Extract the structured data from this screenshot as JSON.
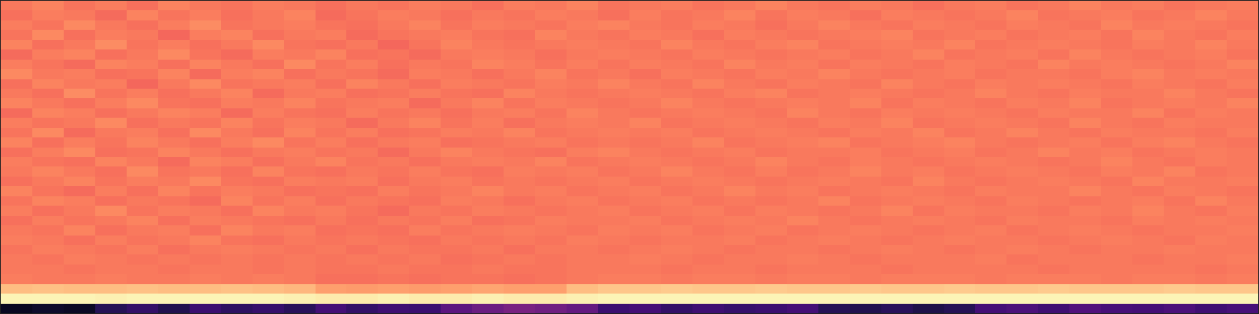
{
  "chart_data": {
    "type": "heatmap",
    "tick_labels": false,
    "color_range": [
      0,
      1
    ],
    "cells": [
      [
        0.72,
        0.74,
        0.71,
        0.73,
        0.7,
        0.74,
        0.72,
        0.71,
        0.73,
        0.72,
        0.7,
        0.72,
        0.71,
        0.73,
        0.72,
        0.7,
        0.73,
        0.72,
        0.74,
        0.71,
        0.72,
        0.73,
        0.71,
        0.72,
        0.74,
        0.72,
        0.71,
        0.73,
        0.72,
        0.7,
        0.72,
        0.73,
        0.71,
        0.72,
        0.74,
        0.72,
        0.73,
        0.71,
        0.72,
        0.73
      ],
      [
        0.7,
        0.73,
        0.72,
        0.69,
        0.74,
        0.71,
        0.73,
        0.7,
        0.72,
        0.74,
        0.69,
        0.71,
        0.73,
        0.72,
        0.7,
        0.72,
        0.71,
        0.73,
        0.72,
        0.7,
        0.73,
        0.71,
        0.72,
        0.74,
        0.71,
        0.73,
        0.72,
        0.7,
        0.73,
        0.72,
        0.71,
        0.72,
        0.74,
        0.71,
        0.72,
        0.73,
        0.71,
        0.72,
        0.74,
        0.72
      ],
      [
        0.73,
        0.71,
        0.75,
        0.72,
        0.7,
        0.73,
        0.76,
        0.71,
        0.72,
        0.73,
        0.71,
        0.7,
        0.72,
        0.74,
        0.71,
        0.73,
        0.72,
        0.71,
        0.73,
        0.74,
        0.72,
        0.71,
        0.73,
        0.72,
        0.7,
        0.72,
        0.74,
        0.72,
        0.71,
        0.73,
        0.72,
        0.71,
        0.73,
        0.72,
        0.71,
        0.74,
        0.72,
        0.73,
        0.72,
        0.71
      ],
      [
        0.71,
        0.75,
        0.7,
        0.73,
        0.72,
        0.68,
        0.73,
        0.74,
        0.7,
        0.72,
        0.73,
        0.69,
        0.71,
        0.72,
        0.73,
        0.71,
        0.7,
        0.74,
        0.72,
        0.71,
        0.73,
        0.72,
        0.7,
        0.73,
        0.72,
        0.71,
        0.72,
        0.73,
        0.74,
        0.71,
        0.72,
        0.73,
        0.71,
        0.72,
        0.73,
        0.71,
        0.74,
        0.72,
        0.71,
        0.73
      ],
      [
        0.74,
        0.7,
        0.72,
        0.76,
        0.71,
        0.73,
        0.7,
        0.72,
        0.75,
        0.71,
        0.7,
        0.72,
        0.68,
        0.71,
        0.74,
        0.72,
        0.71,
        0.72,
        0.73,
        0.72,
        0.71,
        0.74,
        0.72,
        0.71,
        0.73,
        0.74,
        0.71,
        0.72,
        0.73,
        0.72,
        0.74,
        0.71,
        0.72,
        0.73,
        0.72,
        0.71,
        0.73,
        0.72,
        0.74,
        0.72
      ],
      [
        0.69,
        0.73,
        0.74,
        0.7,
        0.72,
        0.75,
        0.71,
        0.69,
        0.73,
        0.72,
        0.74,
        0.7,
        0.71,
        0.69,
        0.72,
        0.73,
        0.72,
        0.7,
        0.72,
        0.73,
        0.72,
        0.71,
        0.73,
        0.72,
        0.71,
        0.72,
        0.73,
        0.71,
        0.72,
        0.74,
        0.71,
        0.72,
        0.73,
        0.71,
        0.74,
        0.72,
        0.71,
        0.72,
        0.73,
        0.71
      ],
      [
        0.73,
        0.71,
        0.69,
        0.74,
        0.73,
        0.7,
        0.74,
        0.72,
        0.7,
        0.75,
        0.71,
        0.73,
        0.7,
        0.72,
        0.71,
        0.74,
        0.73,
        0.71,
        0.73,
        0.71,
        0.73,
        0.72,
        0.71,
        0.74,
        0.72,
        0.73,
        0.71,
        0.73,
        0.72,
        0.71,
        0.73,
        0.72,
        0.71,
        0.74,
        0.72,
        0.73,
        0.72,
        0.71,
        0.72,
        0.74
      ],
      [
        0.75,
        0.72,
        0.73,
        0.7,
        0.71,
        0.74,
        0.69,
        0.73,
        0.74,
        0.7,
        0.72,
        0.71,
        0.69,
        0.73,
        0.72,
        0.7,
        0.72,
        0.74,
        0.71,
        0.72,
        0.7,
        0.73,
        0.72,
        0.71,
        0.73,
        0.72,
        0.74,
        0.72,
        0.71,
        0.72,
        0.73,
        0.71,
        0.72,
        0.72,
        0.71,
        0.73,
        0.74,
        0.72,
        0.73,
        0.72
      ],
      [
        0.7,
        0.74,
        0.72,
        0.73,
        0.68,
        0.72,
        0.75,
        0.71,
        0.72,
        0.73,
        0.7,
        0.74,
        0.72,
        0.7,
        0.73,
        0.72,
        0.71,
        0.73,
        0.72,
        0.74,
        0.72,
        0.71,
        0.74,
        0.72,
        0.71,
        0.73,
        0.72,
        0.71,
        0.74,
        0.72,
        0.71,
        0.73,
        0.72,
        0.73,
        0.72,
        0.71,
        0.73,
        0.72,
        0.71,
        0.73
      ],
      [
        0.72,
        0.7,
        0.76,
        0.71,
        0.73,
        0.7,
        0.72,
        0.74,
        0.69,
        0.72,
        0.73,
        0.7,
        0.71,
        0.73,
        0.71,
        0.7,
        0.74,
        0.72,
        0.71,
        0.72,
        0.73,
        0.72,
        0.71,
        0.73,
        0.74,
        0.71,
        0.72,
        0.73,
        0.72,
        0.71,
        0.72,
        0.74,
        0.72,
        0.71,
        0.73,
        0.72,
        0.72,
        0.74,
        0.72,
        0.71
      ],
      [
        0.74,
        0.72,
        0.7,
        0.73,
        0.75,
        0.71,
        0.7,
        0.73,
        0.72,
        0.74,
        0.71,
        0.72,
        0.73,
        0.69,
        0.72,
        0.74,
        0.71,
        0.73,
        0.72,
        0.71,
        0.72,
        0.74,
        0.72,
        0.71,
        0.72,
        0.73,
        0.72,
        0.74,
        0.71,
        0.73,
        0.72,
        0.71,
        0.73,
        0.72,
        0.74,
        0.71,
        0.72,
        0.73,
        0.72,
        0.74
      ],
      [
        0.69,
        0.74,
        0.73,
        0.7,
        0.72,
        0.74,
        0.73,
        0.69,
        0.73,
        0.71,
        0.7,
        0.73,
        0.71,
        0.72,
        0.7,
        0.72,
        0.73,
        0.71,
        0.74,
        0.72,
        0.71,
        0.72,
        0.73,
        0.72,
        0.71,
        0.74,
        0.72,
        0.71,
        0.73,
        0.72,
        0.73,
        0.72,
        0.71,
        0.73,
        0.72,
        0.72,
        0.74,
        0.71,
        0.73,
        0.72
      ],
      [
        0.73,
        0.71,
        0.72,
        0.75,
        0.7,
        0.72,
        0.71,
        0.74,
        0.71,
        0.73,
        0.72,
        0.69,
        0.72,
        0.74,
        0.71,
        0.73,
        0.7,
        0.72,
        0.73,
        0.72,
        0.74,
        0.71,
        0.72,
        0.73,
        0.72,
        0.71,
        0.73,
        0.72,
        0.74,
        0.71,
        0.72,
        0.73,
        0.72,
        0.71,
        0.74,
        0.72,
        0.71,
        0.73,
        0.72,
        0.72
      ],
      [
        0.71,
        0.75,
        0.69,
        0.72,
        0.73,
        0.7,
        0.75,
        0.72,
        0.7,
        0.74,
        0.71,
        0.73,
        0.7,
        0.71,
        0.73,
        0.72,
        0.74,
        0.71,
        0.72,
        0.73,
        0.72,
        0.73,
        0.71,
        0.72,
        0.73,
        0.72,
        0.71,
        0.73,
        0.72,
        0.74,
        0.71,
        0.72,
        0.74,
        0.72,
        0.71,
        0.73,
        0.72,
        0.72,
        0.71,
        0.73
      ],
      [
        0.74,
        0.7,
        0.73,
        0.71,
        0.74,
        0.72,
        0.7,
        0.73,
        0.75,
        0.71,
        0.73,
        0.7,
        0.72,
        0.73,
        0.7,
        0.71,
        0.72,
        0.73,
        0.71,
        0.72,
        0.71,
        0.72,
        0.74,
        0.71,
        0.72,
        0.73,
        0.74,
        0.71,
        0.72,
        0.73,
        0.74,
        0.72,
        0.71,
        0.72,
        0.73,
        0.71,
        0.73,
        0.74,
        0.72,
        0.71
      ],
      [
        0.7,
        0.73,
        0.75,
        0.7,
        0.71,
        0.74,
        0.72,
        0.7,
        0.72,
        0.73,
        0.71,
        0.72,
        0.69,
        0.72,
        0.74,
        0.72,
        0.71,
        0.7,
        0.73,
        0.74,
        0.72,
        0.71,
        0.72,
        0.73,
        0.71,
        0.72,
        0.72,
        0.73,
        0.71,
        0.72,
        0.73,
        0.71,
        0.72,
        0.74,
        0.72,
        0.73,
        0.71,
        0.72,
        0.73,
        0.72
      ],
      [
        0.73,
        0.71,
        0.7,
        0.74,
        0.72,
        0.69,
        0.74,
        0.73,
        0.7,
        0.72,
        0.74,
        0.71,
        0.72,
        0.7,
        0.72,
        0.73,
        0.72,
        0.74,
        0.71,
        0.72,
        0.73,
        0.72,
        0.71,
        0.72,
        0.74,
        0.72,
        0.71,
        0.73,
        0.72,
        0.71,
        0.72,
        0.73,
        0.72,
        0.71,
        0.72,
        0.74,
        0.72,
        0.71,
        0.73,
        0.72
      ],
      [
        0.72,
        0.74,
        0.72,
        0.7,
        0.75,
        0.71,
        0.72,
        0.7,
        0.74,
        0.71,
        0.7,
        0.72,
        0.71,
        0.73,
        0.71,
        0.7,
        0.73,
        0.72,
        0.73,
        0.71,
        0.72,
        0.74,
        0.72,
        0.71,
        0.73,
        0.71,
        0.72,
        0.74,
        0.72,
        0.73,
        0.71,
        0.72,
        0.73,
        0.72,
        0.71,
        0.73,
        0.72,
        0.74,
        0.71,
        0.72
      ],
      [
        0.7,
        0.72,
        0.74,
        0.71,
        0.73,
        0.72,
        0.75,
        0.71,
        0.7,
        0.73,
        0.72,
        0.73,
        0.7,
        0.72,
        0.73,
        0.71,
        0.72,
        0.71,
        0.72,
        0.73,
        0.71,
        0.72,
        0.73,
        0.72,
        0.71,
        0.72,
        0.73,
        0.72,
        0.71,
        0.74,
        0.72,
        0.71,
        0.72,
        0.73,
        0.72,
        0.71,
        0.74,
        0.72,
        0.72,
        0.73
      ],
      [
        0.74,
        0.71,
        0.69,
        0.73,
        0.7,
        0.74,
        0.71,
        0.73,
        0.72,
        0.7,
        0.71,
        0.7,
        0.73,
        0.71,
        0.72,
        0.74,
        0.72,
        0.73,
        0.71,
        0.72,
        0.73,
        0.71,
        0.72,
        0.74,
        0.72,
        0.73,
        0.71,
        0.72,
        0.73,
        0.72,
        0.71,
        0.73,
        0.72,
        0.72,
        0.74,
        0.72,
        0.71,
        0.73,
        0.72,
        0.71
      ],
      [
        0.71,
        0.74,
        0.73,
        0.7,
        0.72,
        0.71,
        0.69,
        0.74,
        0.71,
        0.73,
        0.7,
        0.72,
        0.71,
        0.7,
        0.73,
        0.72,
        0.7,
        0.72,
        0.73,
        0.71,
        0.72,
        0.73,
        0.71,
        0.72,
        0.71,
        0.72,
        0.74,
        0.71,
        0.72,
        0.73,
        0.72,
        0.71,
        0.73,
        0.72,
        0.71,
        0.72,
        0.73,
        0.71,
        0.74,
        0.72
      ],
      [
        0.73,
        0.7,
        0.72,
        0.75,
        0.71,
        0.73,
        0.72,
        0.7,
        0.74,
        0.72,
        0.73,
        0.71,
        0.69,
        0.72,
        0.71,
        0.73,
        0.72,
        0.71,
        0.72,
        0.73,
        0.71,
        0.72,
        0.73,
        0.71,
        0.73,
        0.72,
        0.71,
        0.72,
        0.74,
        0.71,
        0.73,
        0.72,
        0.72,
        0.71,
        0.73,
        0.72,
        0.74,
        0.72,
        0.71,
        0.73
      ],
      [
        0.7,
        0.73,
        0.71,
        0.72,
        0.74,
        0.7,
        0.73,
        0.72,
        0.71,
        0.7,
        0.72,
        0.7,
        0.72,
        0.71,
        0.73,
        0.7,
        0.71,
        0.73,
        0.72,
        0.72,
        0.73,
        0.71,
        0.72,
        0.73,
        0.72,
        0.74,
        0.72,
        0.71,
        0.72,
        0.73,
        0.72,
        0.71,
        0.73,
        0.72,
        0.72,
        0.71,
        0.73,
        0.72,
        0.73,
        0.72
      ],
      [
        0.72,
        0.71,
        0.74,
        0.7,
        0.72,
        0.73,
        0.7,
        0.74,
        0.72,
        0.73,
        0.7,
        0.71,
        0.7,
        0.73,
        0.71,
        0.72,
        0.73,
        0.72,
        0.71,
        0.73,
        0.72,
        0.73,
        0.71,
        0.72,
        0.73,
        0.71,
        0.72,
        0.73,
        0.72,
        0.71,
        0.72,
        0.73,
        0.71,
        0.72,
        0.73,
        0.72,
        0.71,
        0.72,
        0.72,
        0.73
      ],
      [
        0.73,
        0.72,
        0.7,
        0.73,
        0.71,
        0.72,
        0.74,
        0.71,
        0.7,
        0.72,
        0.71,
        0.72,
        0.71,
        0.7,
        0.72,
        0.71,
        0.72,
        0.71,
        0.73,
        0.72,
        0.71,
        0.72,
        0.72,
        0.73,
        0.71,
        0.72,
        0.73,
        0.72,
        0.71,
        0.72,
        0.73,
        0.72,
        0.72,
        0.71,
        0.72,
        0.73,
        0.72,
        0.71,
        0.73,
        0.72
      ],
      [
        0.71,
        0.73,
        0.72,
        0.71,
        0.73,
        0.7,
        0.72,
        0.73,
        0.72,
        0.71,
        0.72,
        0.7,
        0.72,
        0.71,
        0.71,
        0.72,
        0.7,
        0.72,
        0.72,
        0.71,
        0.72,
        0.73,
        0.72,
        0.71,
        0.72,
        0.72,
        0.71,
        0.72,
        0.73,
        0.72,
        0.71,
        0.72,
        0.73,
        0.72,
        0.71,
        0.72,
        0.72,
        0.73,
        0.72,
        0.72
      ],
      [
        0.72,
        0.71,
        0.73,
        0.72,
        0.71,
        0.72,
        0.71,
        0.72,
        0.71,
        0.72,
        0.71,
        0.72,
        0.71,
        0.72,
        0.7,
        0.71,
        0.72,
        0.71,
        0.72,
        0.72,
        0.73,
        0.72,
        0.71,
        0.72,
        0.72,
        0.73,
        0.72,
        0.71,
        0.72,
        0.72,
        0.72,
        0.73,
        0.71,
        0.72,
        0.72,
        0.72,
        0.71,
        0.72,
        0.72,
        0.73
      ],
      [
        0.72,
        0.72,
        0.71,
        0.72,
        0.72,
        0.71,
        0.72,
        0.72,
        0.71,
        0.72,
        0.71,
        0.71,
        0.72,
        0.71,
        0.71,
        0.72,
        0.71,
        0.71,
        0.72,
        0.72,
        0.72,
        0.71,
        0.72,
        0.72,
        0.71,
        0.72,
        0.72,
        0.72,
        0.71,
        0.72,
        0.72,
        0.72,
        0.72,
        0.71,
        0.72,
        0.72,
        0.72,
        0.72,
        0.71,
        0.72
      ],
      [
        0.73,
        0.72,
        0.72,
        0.73,
        0.72,
        0.72,
        0.73,
        0.72,
        0.73,
        0.72,
        0.7,
        0.7,
        0.71,
        0.7,
        0.71,
        0.71,
        0.7,
        0.71,
        0.72,
        0.73,
        0.73,
        0.72,
        0.73,
        0.73,
        0.72,
        0.73,
        0.73,
        0.72,
        0.73,
        0.73,
        0.73,
        0.72,
        0.73,
        0.73,
        0.73,
        0.72,
        0.73,
        0.73,
        0.72,
        0.73
      ],
      [
        0.86,
        0.87,
        0.86,
        0.86,
        0.87,
        0.86,
        0.86,
        0.87,
        0.86,
        0.85,
        0.8,
        0.79,
        0.8,
        0.79,
        0.8,
        0.81,
        0.8,
        0.8,
        0.86,
        0.88,
        0.88,
        0.89,
        0.88,
        0.88,
        0.89,
        0.88,
        0.88,
        0.89,
        0.88,
        0.88,
        0.89,
        0.88,
        0.88,
        0.89,
        0.88,
        0.88,
        0.88,
        0.89,
        0.88,
        0.88
      ],
      [
        0.98,
        0.98,
        0.98,
        0.97,
        0.98,
        0.98,
        0.98,
        0.98,
        0.98,
        0.97,
        0.96,
        0.96,
        0.97,
        0.96,
        0.96,
        0.97,
        0.96,
        0.96,
        0.97,
        0.98,
        0.98,
        0.98,
        0.98,
        0.98,
        0.98,
        0.98,
        0.98,
        0.98,
        0.98,
        0.98,
        0.98,
        0.98,
        0.98,
        0.98,
        0.98,
        0.98,
        0.98,
        0.98,
        0.98,
        0.98
      ],
      [
        0.06,
        0.08,
        0.07,
        0.15,
        0.18,
        0.14,
        0.2,
        0.17,
        0.19,
        0.16,
        0.22,
        0.18,
        0.21,
        0.2,
        0.28,
        0.32,
        0.35,
        0.33,
        0.3,
        0.2,
        0.22,
        0.18,
        0.21,
        0.19,
        0.2,
        0.22,
        0.15,
        0.14,
        0.16,
        0.13,
        0.15,
        0.22,
        0.24,
        0.21,
        0.25,
        0.23,
        0.22,
        0.24,
        0.21,
        0.23
      ]
    ]
  }
}
